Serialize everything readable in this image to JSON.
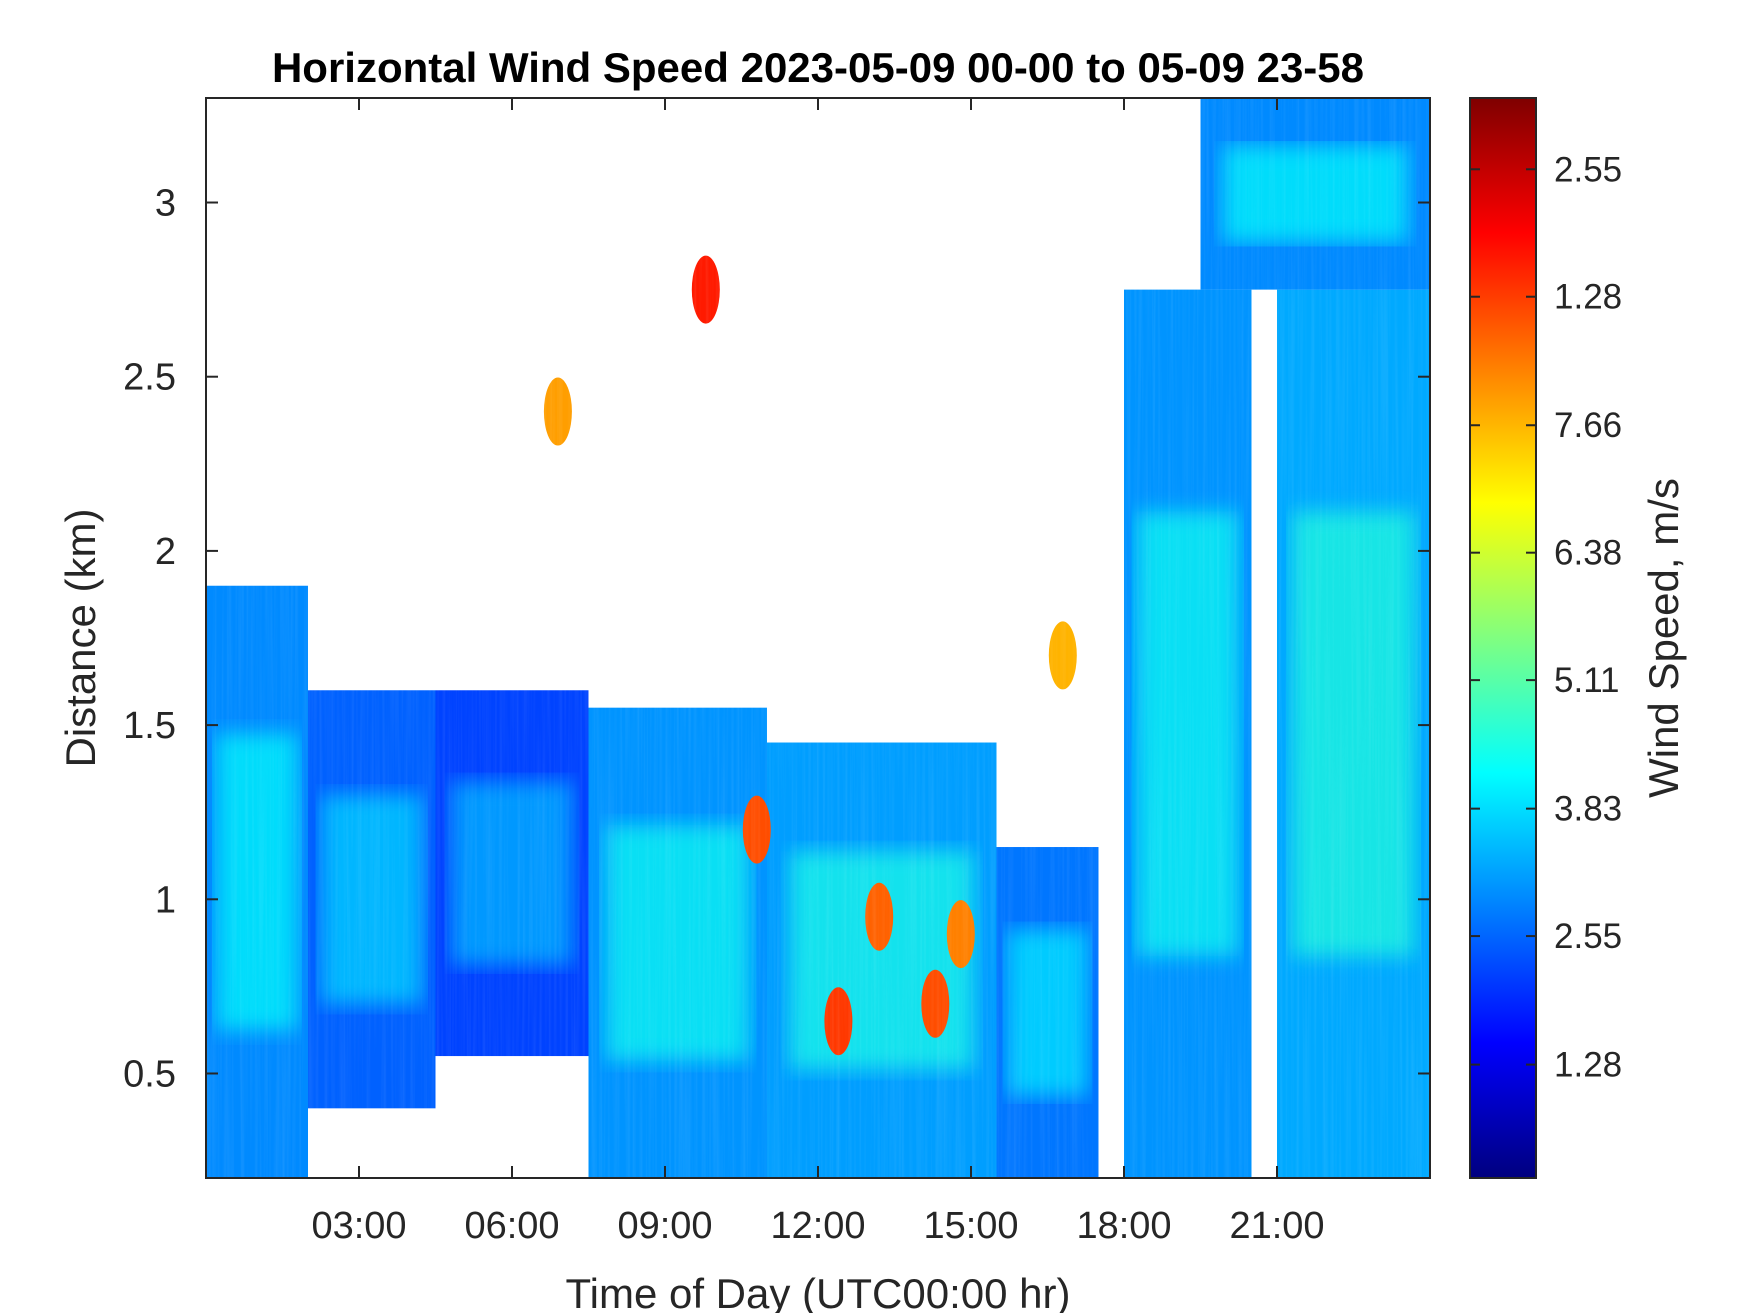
{
  "chart_data": {
    "type": "heatmap",
    "title": "Horizontal Wind Speed 2023-05-09 00-00 to 05-09 23-58",
    "xlabel": "Time of Day (UTC00:00 hr)",
    "ylabel": "Distance (km)",
    "colorbar_label": "Wind Speed, m/s",
    "x_unit": "hours",
    "xlim": [
      0,
      24
    ],
    "ylim": [
      0.2,
      3.3
    ],
    "x_ticks": [
      {
        "value": 3,
        "label": "03:00"
      },
      {
        "value": 6,
        "label": "06:00"
      },
      {
        "value": 9,
        "label": "09:00"
      },
      {
        "value": 12,
        "label": "12:00"
      },
      {
        "value": 15,
        "label": "15:00"
      },
      {
        "value": 18,
        "label": "18:00"
      },
      {
        "value": 21,
        "label": "21:00"
      }
    ],
    "y_ticks": [
      {
        "value": 0.5,
        "label": "0.5"
      },
      {
        "value": 1,
        "label": "1"
      },
      {
        "value": 1.5,
        "label": "1.5"
      },
      {
        "value": 2,
        "label": "2"
      },
      {
        "value": 2.5,
        "label": "2.5"
      },
      {
        "value": 3,
        "label": "3"
      }
    ],
    "colorbar_ticks": [
      {
        "fraction": 0.105,
        "label": "1.28"
      },
      {
        "fraction": 0.224,
        "label": "2.55"
      },
      {
        "fraction": 0.342,
        "label": "3.83"
      },
      {
        "fraction": 0.461,
        "label": "5.11"
      },
      {
        "fraction": 0.579,
        "label": "6.38"
      },
      {
        "fraction": 0.697,
        "label": "7.66"
      },
      {
        "fraction": 0.816,
        "label": "1.28"
      },
      {
        "fraction": 0.934,
        "label": "2.55"
      }
    ],
    "colormap": "jet",
    "colormap_stops": [
      "#00007f",
      "#0000ff",
      "#0080ff",
      "#00ffff",
      "#80ff80",
      "#ffff00",
      "#ff8000",
      "#ff0000",
      "#7f0000"
    ],
    "grid": false,
    "background_color": "#ffffff",
    "series": [
      {
        "values_note_free": true,
        "regions": [
          {
            "x": [
              0,
              2
            ],
            "y": [
              0.2,
              1.9
            ],
            "level": 0.32
          },
          {
            "x": [
              2,
              4.5
            ],
            "y": [
              0.4,
              1.6
            ],
            "level": 0.28
          },
          {
            "x": [
              4.5,
              7.5
            ],
            "y": [
              0.55,
              1.6
            ],
            "level": 0.25
          },
          {
            "x": [
              7.5,
              11
            ],
            "y": [
              0.2,
              1.55
            ],
            "level": 0.33
          },
          {
            "x": [
              11,
              15.5
            ],
            "y": [
              0.2,
              1.45
            ],
            "level": 0.34
          },
          {
            "x": [
              15.5,
              17.5
            ],
            "y": [
              0.2,
              1.15
            ],
            "level": 0.3
          },
          {
            "x": [
              18,
              20.5
            ],
            "y": [
              0.2,
              2.75
            ],
            "level": 0.33
          },
          {
            "x": [
              21,
              24
            ],
            "y": [
              0.2,
              2.75
            ],
            "level": 0.35
          },
          {
            "x": [
              19.5,
              24
            ],
            "y": [
              2.75,
              3.3
            ],
            "level": 0.32
          }
        ],
        "hotspots": [
          {
            "x": 10.8,
            "y": 1.2,
            "level": 0.8
          },
          {
            "x": 12.4,
            "y": 0.65,
            "level": 0.82
          },
          {
            "x": 13.2,
            "y": 0.95,
            "level": 0.78
          },
          {
            "x": 14.3,
            "y": 0.7,
            "level": 0.8
          },
          {
            "x": 14.8,
            "y": 0.9,
            "level": 0.75
          },
          {
            "x": 6.9,
            "y": 2.4,
            "level": 0.72
          },
          {
            "x": 9.8,
            "y": 2.75,
            "level": 0.85
          },
          {
            "x": 16.8,
            "y": 1.7,
            "level": 0.7
          }
        ]
      }
    ]
  }
}
